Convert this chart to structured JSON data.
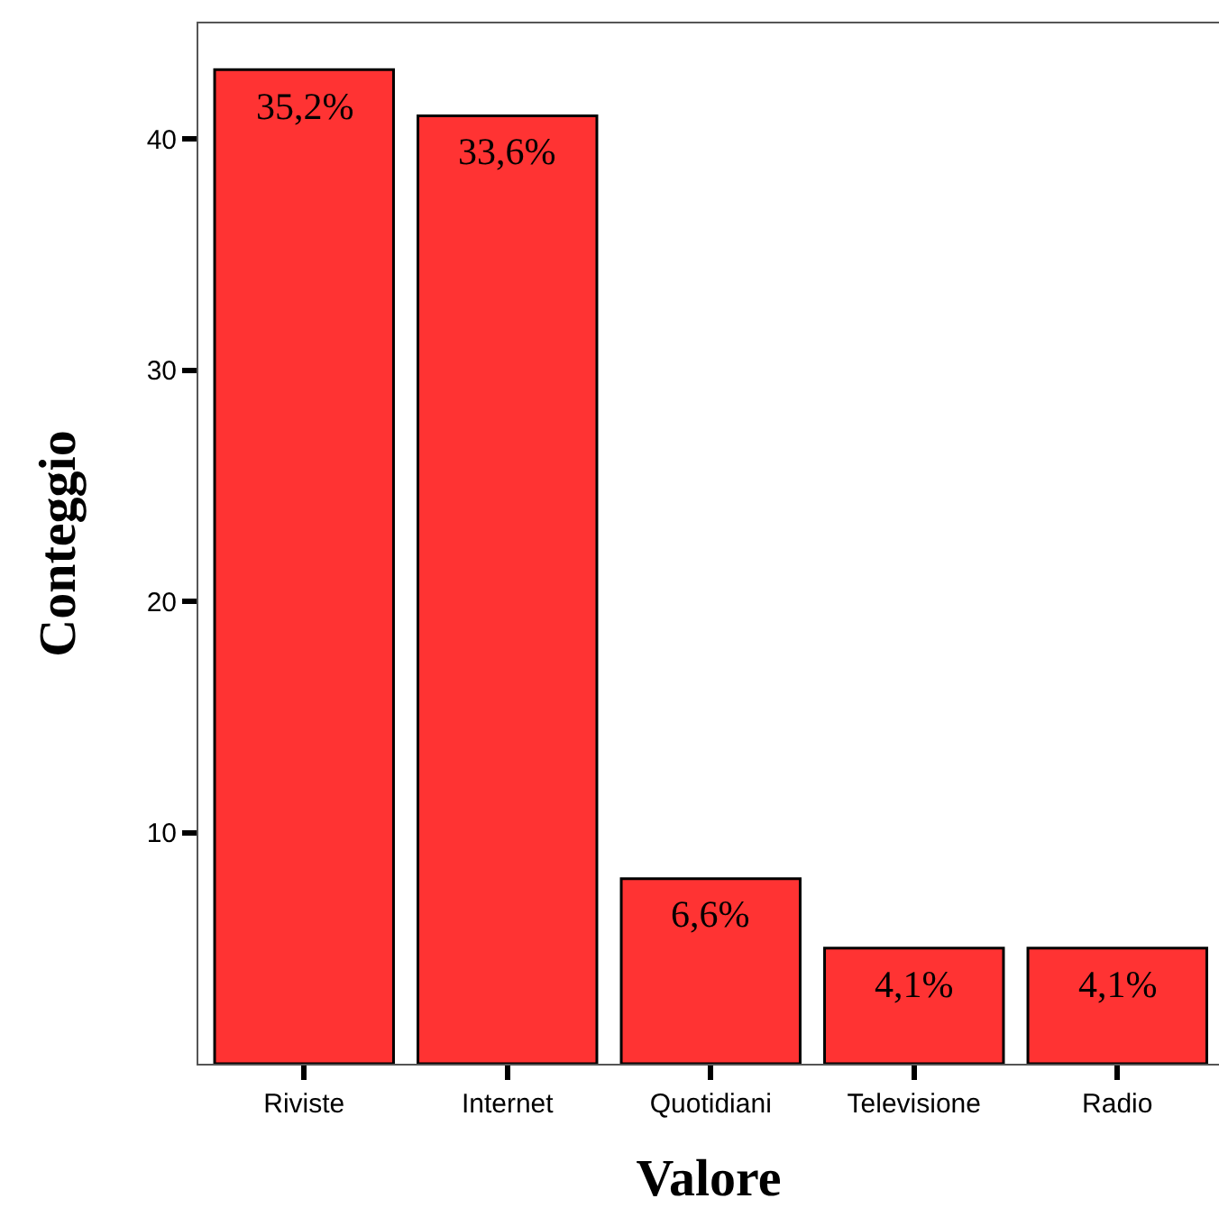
{
  "chart_data": {
    "type": "bar",
    "xlabel": "Valore",
    "ylabel": "Conteggio",
    "categories": [
      "Riviste",
      "Internet",
      "Quotidiani",
      "Televisione",
      "Radio"
    ],
    "values": [
      43,
      41,
      8,
      5,
      5
    ],
    "annotations": [
      {
        "text": "35,2%",
        "x": "Riviste",
        "y": 43
      },
      {
        "text": "33,6%",
        "x": "Internet",
        "y": 41
      },
      {
        "text": "6,6%",
        "x": "Quotidiani",
        "y": 8
      },
      {
        "text": "4,1%",
        "x": "Televisione",
        "y": 5
      },
      {
        "text": "4,1%",
        "x": "Radio",
        "y": 5
      }
    ],
    "color": "#ff3333",
    "ylim": [
      0,
      45
    ],
    "yticks": [
      10,
      20,
      30,
      40
    ],
    "legend": false
  }
}
